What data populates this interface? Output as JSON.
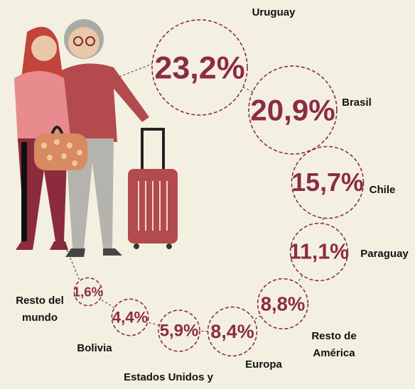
{
  "chart_data": {
    "type": "bubble",
    "categories": [
      "Uruguay",
      "Brasil",
      "Chile",
      "Paraguay",
      "Resto de América",
      "Europa",
      "Estados Unidos y Canadá",
      "Bolivia",
      "Resto del mundo"
    ],
    "values": [
      23.2,
      20.9,
      15.7,
      11.1,
      8.8,
      8.4,
      5.9,
      4.4,
      1.6
    ],
    "value_labels": [
      "23,2%",
      "20,9%",
      "15,7%",
      "11,1%",
      "8,8%",
      "8,4%",
      "5,9%",
      "4,4%",
      "1,6%"
    ],
    "color": "#8c2b46"
  }
}
